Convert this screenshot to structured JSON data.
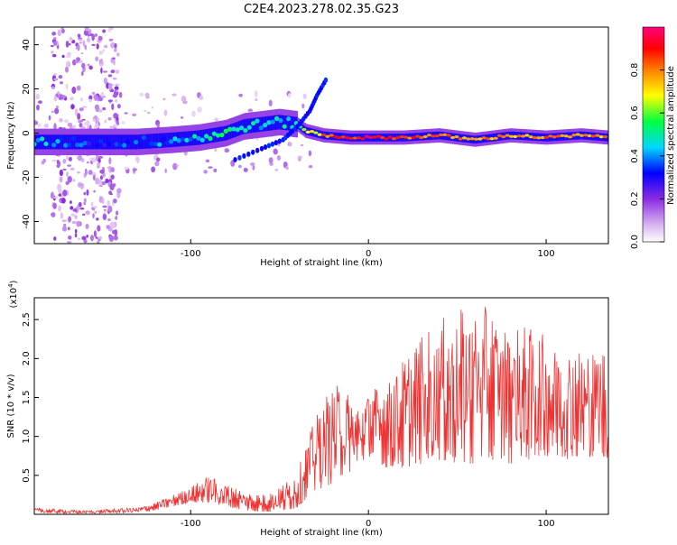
{
  "title": "C2E4.2023.278.02.35.G23",
  "chart_data": [
    {
      "type": "heatmap",
      "xlabel": "Height of straight line (km)",
      "ylabel": "Frequency (Hz)",
      "xlim": [
        -188,
        135
      ],
      "ylim": [
        -50,
        48
      ],
      "x_ticks": [
        -100,
        0,
        100
      ],
      "x_tick_labels": [
        "-100",
        "0",
        "100"
      ],
      "y_ticks": [
        -40,
        -20,
        0,
        20,
        40
      ],
      "y_tick_labels": [
        "-40",
        "-20",
        "0",
        "20",
        "40"
      ],
      "colorbar": {
        "label": "Normalized spectral amplitude",
        "range": [
          0,
          1
        ],
        "ticks": [
          0.0,
          0.2,
          0.4,
          0.6,
          0.8
        ],
        "tick_labels": [
          "0.0",
          "0.2",
          "0.4",
          "0.6",
          "0.8"
        ],
        "colors": [
          "#ffffff",
          "#d9b3f2",
          "#8a2be2",
          "#0000ff",
          "#00d8ff",
          "#00ff40",
          "#ffff00",
          "#ff8000",
          "#ff0000",
          "#ff0080"
        ]
      },
      "ridge": [
        {
          "x": -188,
          "f": -4,
          "amp": 0.45
        },
        {
          "x": -170,
          "f": -4,
          "amp": 0.35
        },
        {
          "x": -150,
          "f": -4,
          "amp": 0.3
        },
        {
          "x": -130,
          "f": -4,
          "amp": 0.35
        },
        {
          "x": -110,
          "f": -3,
          "amp": 0.4
        },
        {
          "x": -95,
          "f": -2,
          "amp": 0.45
        },
        {
          "x": -80,
          "f": 0,
          "amp": 0.5
        },
        {
          "x": -70,
          "f": 3,
          "amp": 0.5
        },
        {
          "x": -60,
          "f": 4,
          "amp": 0.45
        },
        {
          "x": -50,
          "f": 5,
          "amp": 0.45
        },
        {
          "x": -40,
          "f": 4,
          "amp": 0.5
        },
        {
          "x": -35,
          "f": 1,
          "amp": 0.6
        },
        {
          "x": -25,
          "f": -1,
          "amp": 0.8
        },
        {
          "x": -10,
          "f": -2,
          "amp": 0.9
        },
        {
          "x": 0,
          "f": -2,
          "amp": 0.9
        },
        {
          "x": 20,
          "f": -2,
          "amp": 0.85
        },
        {
          "x": 40,
          "f": -1,
          "amp": 0.8
        },
        {
          "x": 60,
          "f": -3,
          "amp": 0.8
        },
        {
          "x": 80,
          "f": -1,
          "amp": 0.75
        },
        {
          "x": 100,
          "f": -2,
          "amp": 0.8
        },
        {
          "x": 120,
          "f": -1,
          "amp": 0.8
        },
        {
          "x": 135,
          "f": -2,
          "amp": 0.75
        }
      ],
      "branch": [
        {
          "x": -75,
          "f": -12
        },
        {
          "x": -60,
          "f": -7
        },
        {
          "x": -48,
          "f": -3
        },
        {
          "x": -40,
          "f": 3
        },
        {
          "x": -33,
          "f": 10
        },
        {
          "x": -29,
          "f": 17
        },
        {
          "x": -24,
          "f": 24
        }
      ],
      "noise_band": {
        "x": [
          -178,
          -140
        ],
        "f": [
          -50,
          48
        ]
      }
    },
    {
      "type": "line",
      "xlabel": "Height of straight line (km)",
      "ylabel": "SNR (10 * v/v)",
      "y_multiplier": "(x10",
      "y_multiplier_exp": "4",
      "y_multiplier_close": ")",
      "xlim": [
        -188,
        135
      ],
      "ylim": [
        0,
        27800
      ],
      "x_ticks": [
        -100,
        0,
        100
      ],
      "x_tick_labels": [
        "-100",
        "0",
        "100"
      ],
      "y_ticks": [
        5000,
        10000,
        15000,
        20000,
        25000
      ],
      "y_tick_labels": [
        "0.5",
        "1.0",
        "1.5",
        "2.0",
        "2.5"
      ],
      "series_color": "#ee3333",
      "envelope": {
        "x": [
          -188,
          -160,
          -130,
          -120,
          -110,
          -100,
          -90,
          -80,
          -70,
          -60,
          -50,
          -40,
          -35,
          -30,
          -25,
          -20,
          -15,
          -10,
          -5,
          0,
          10,
          20,
          30,
          40,
          50,
          60,
          70,
          80,
          90,
          100,
          110,
          120,
          135
        ],
        "lo": [
          200,
          100,
          200,
          500,
          1000,
          1500,
          1500,
          1000,
          500,
          300,
          400,
          800,
          2000,
          3000,
          3500,
          4000,
          5000,
          5500,
          6500,
          7500,
          6000,
          6000,
          6500,
          7000,
          6500,
          6500,
          7000,
          6500,
          7000,
          7500,
          7000,
          7500,
          7000
        ],
        "hi": [
          800,
          500,
          900,
          1500,
          2500,
          3500,
          5000,
          4000,
          3000,
          2500,
          3500,
          5500,
          9000,
          12500,
          15000,
          16500,
          17000,
          15000,
          14000,
          16000,
          17000,
          20000,
          23000,
          25000,
          26000,
          27500,
          26000,
          25000,
          24000,
          23000,
          22000,
          21000,
          21500
        ]
      }
    }
  ]
}
